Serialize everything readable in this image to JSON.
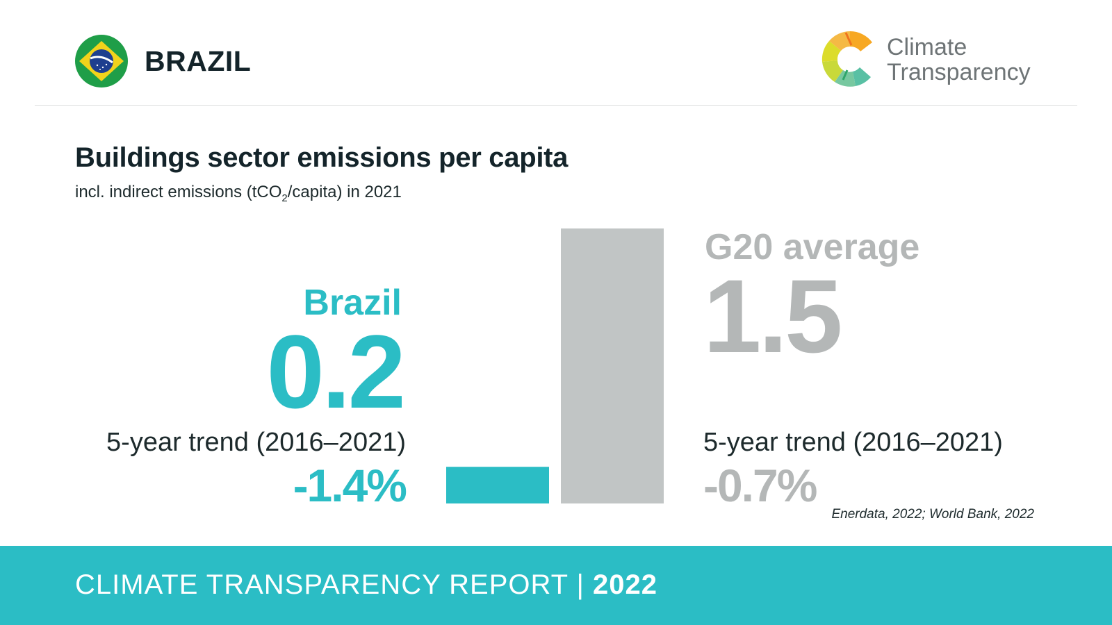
{
  "header": {
    "country": "BRAZIL",
    "brand_line1": "Climate",
    "brand_line2": "Transparency",
    "flag_icon": "brazil-flag-icon",
    "logo_icon": "climate-transparency-logo-icon"
  },
  "colors": {
    "brazil": "#2bbdc5",
    "g20_bar": "#c1c5c5",
    "g20_text": "#b4b7b7",
    "footer": "#2bbdc5"
  },
  "brazil": {
    "label": "Brazil",
    "value": "0.2",
    "trend_label": "5-year trend (2016–2021)",
    "trend_value": "-1.4%"
  },
  "g20": {
    "label": "G20 average",
    "value": "1.5",
    "trend_label": "5-year trend (2016–2021)",
    "trend_value": "-0.7%"
  },
  "chart_data": {
    "type": "bar",
    "title": "Buildings sector emissions per capita",
    "subtitle_pre": "incl. indirect emissions (tCO",
    "subtitle_sub": "2",
    "subtitle_post": "/capita) in 2021",
    "categories": [
      "Brazil",
      "G20 average"
    ],
    "values": [
      0.2,
      1.5
    ],
    "ylim": [
      0,
      1.5
    ],
    "grid": false,
    "source": "Enerdata, 2022; World Bank, 2022"
  },
  "footer": {
    "text": "CLIMATE TRANSPARENCY REPORT | ",
    "year": "2022"
  }
}
